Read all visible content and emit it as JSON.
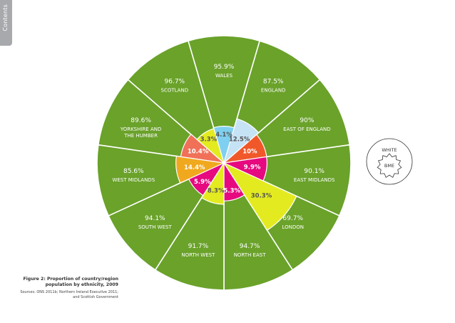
{
  "sidebar": {
    "tab_label": "Contents"
  },
  "caption": {
    "title": "Figure 2: Proportion of country/region population by ethnicity, 2009",
    "source": "Sources: ONS 2011b; Northern Ireland Executive 2011; and Scottish Government"
  },
  "chart_data": {
    "type": "pie",
    "description_outer": "White share",
    "description_inner": "BME share",
    "segments": [
      {
        "name": "WALES",
        "white": "95.9%",
        "bme": "4.1%",
        "white_color": "#6aa22a",
        "bme_color": "#7fd0f0"
      },
      {
        "name": "ENGLAND",
        "white": "87.5%",
        "bme": "12.5%",
        "white_color": "#6aa22a",
        "bme_color": "#c6e3f5"
      },
      {
        "name": "EAST OF ENGLAND",
        "white": "90%",
        "bme": "10%",
        "white_color": "#6aa22a",
        "bme_color": "#f0582a"
      },
      {
        "name": "EAST MIDLANDS",
        "white": "90.1%",
        "bme": "9.9%",
        "white_color": "#6aa22a",
        "bme_color": "#e6097f"
      },
      {
        "name": "LONDON",
        "white": "69.7%",
        "bme": "30.3%",
        "white_color": "#6aa22a",
        "bme_color": "#e3eb20"
      },
      {
        "name": "NORTH EAST",
        "white": "94.7%",
        "bme": "5.3%",
        "white_color": "#6aa22a",
        "bme_color": "#e6097f"
      },
      {
        "name": "NORTH WEST",
        "white": "91.7%",
        "bme": "8.3%",
        "white_color": "#6aa22a",
        "bme_color": "#e3eb20"
      },
      {
        "name": "SOUTH WEST",
        "white": "94.1%",
        "bme": "5.9%",
        "white_color": "#6aa22a",
        "bme_color": "#e6097f"
      },
      {
        "name": "WEST MIDLANDS",
        "white": "85.6%",
        "bme": "14.4%",
        "white_color": "#6aa22a",
        "bme_color": "#f0a81e"
      },
      {
        "name": "YORKSHIRE AND THE HUMBER",
        "white": "89.6%",
        "bme": "10.4%",
        "white_color": "#6aa22a",
        "bme_color": "#f07058"
      },
      {
        "name": "SCOTLAND",
        "white": "96.7%",
        "bme": "3.3%",
        "white_color": "#6aa22a",
        "bme_color": "#e3eb20"
      }
    ],
    "legend": {
      "outer_label": "WHITE",
      "inner_label": "BME"
    }
  }
}
